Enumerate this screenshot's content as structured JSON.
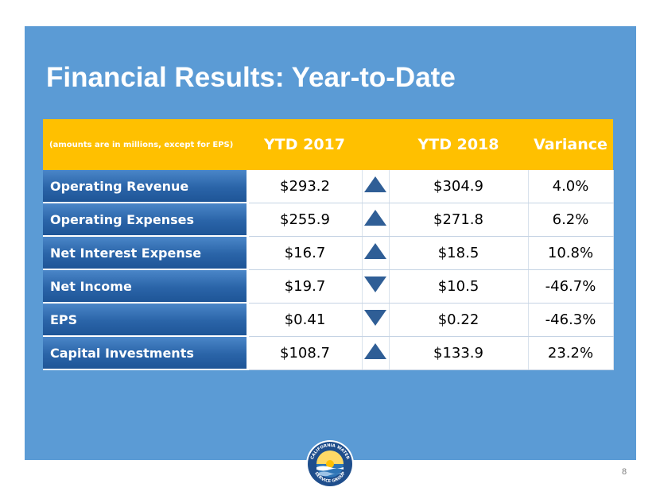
{
  "title": "Financial Results: Year-to-Date",
  "table": {
    "header": {
      "note": "(amounts are in millions, except for EPS)",
      "col1": "YTD 2017",
      "col2": "YTD 2018",
      "col3": "Variance"
    },
    "rows": [
      {
        "label": "Operating Revenue",
        "ytd2017": "$293.2",
        "trend": "up",
        "ytd2018": "$304.9",
        "variance": "4.0%"
      },
      {
        "label": "Operating Expenses",
        "ytd2017": "$255.9",
        "trend": "up",
        "ytd2018": "$271.8",
        "variance": "6.2%"
      },
      {
        "label": "Net Interest Expense",
        "ytd2017": "$16.7",
        "trend": "up",
        "ytd2018": "$18.5",
        "variance": "10.8%"
      },
      {
        "label": "Net Income",
        "ytd2017": "$19.7",
        "trend": "down",
        "ytd2018": "$10.5",
        "variance": "-46.7%"
      },
      {
        "label": "EPS",
        "ytd2017": "$0.41",
        "trend": "down",
        "ytd2018": "$0.22",
        "variance": "-46.3%"
      },
      {
        "label": "Capital Investments",
        "ytd2017": "$108.7",
        "trend": "up",
        "ytd2018": "$133.9",
        "variance": "23.2%"
      }
    ]
  },
  "logo": {
    "text": "CALIFORNIA WATER SERVICE GROUP",
    "icon": "company-seal-icon"
  },
  "page_number": "8",
  "colors": {
    "slide_bg": "#5b9bd5",
    "header_bg": "#ffc000",
    "label_bg": "#2a64a8",
    "arrow": "#2f5e96"
  }
}
